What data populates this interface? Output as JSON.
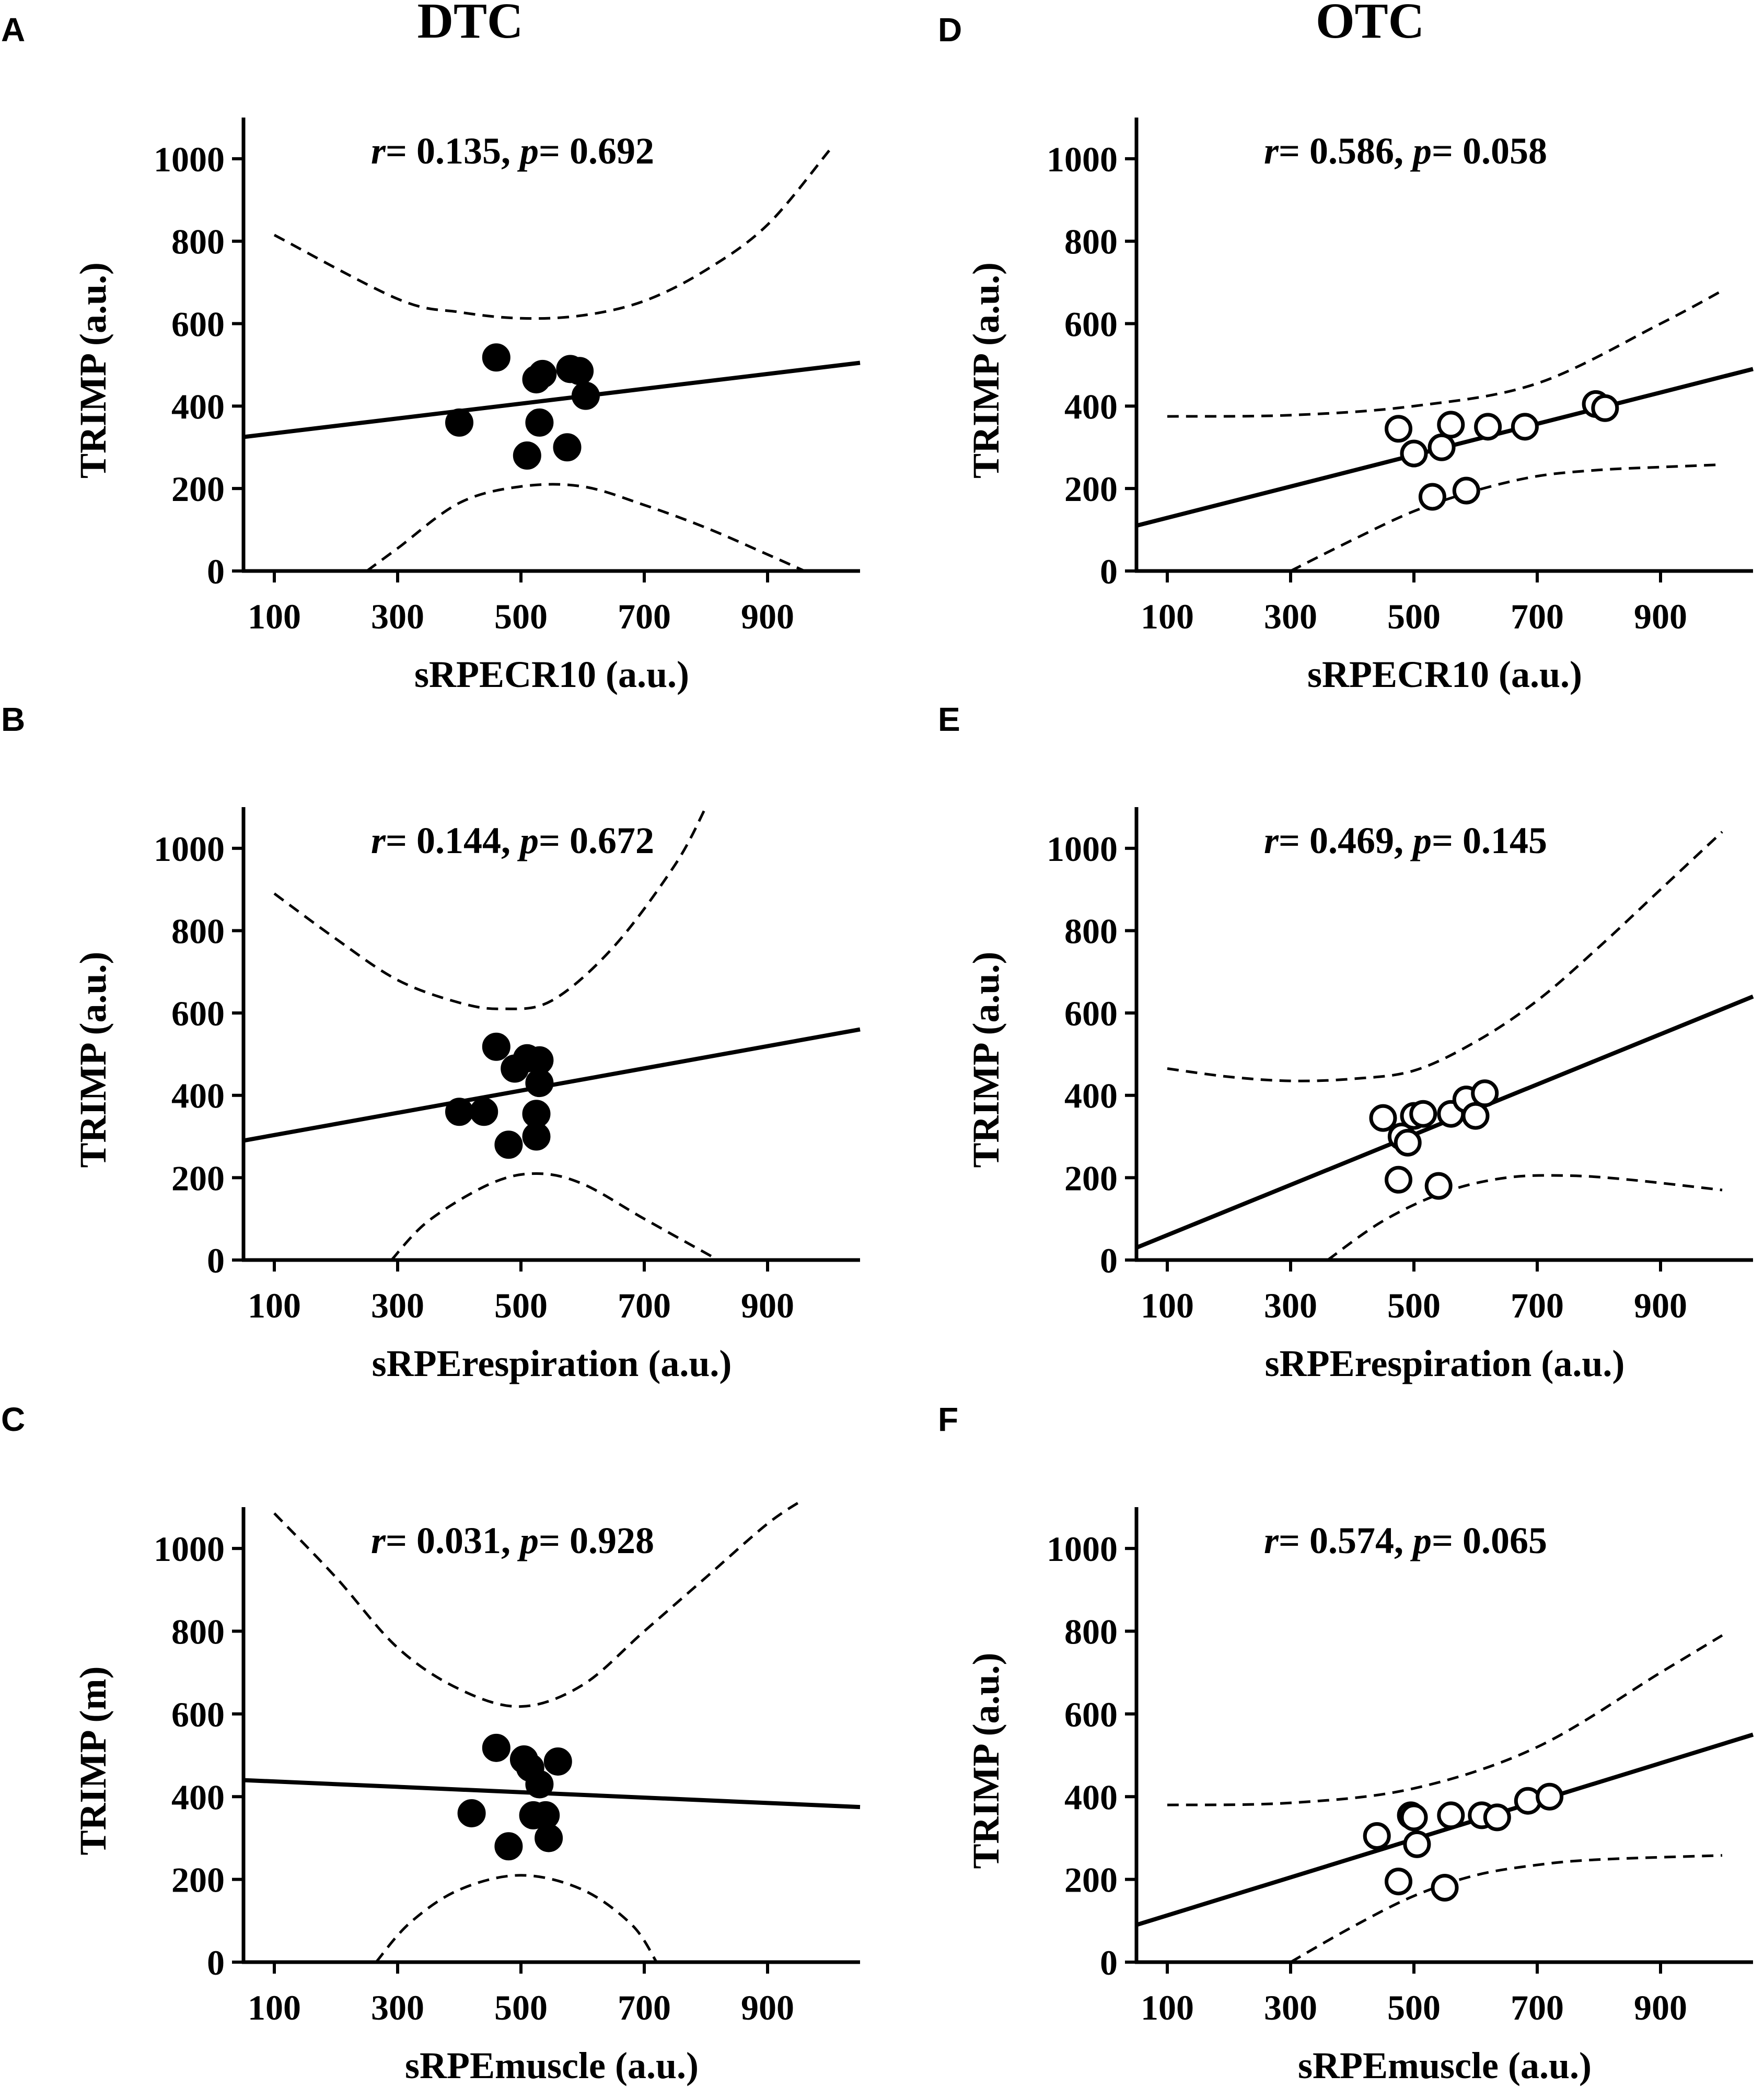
{
  "column_titles": [
    "DTC",
    "OTC"
  ],
  "chart_data": [
    {
      "type": "scatter",
      "panel": "A",
      "group": "DTC",
      "xlabel": "sRPECR10 (a.u.)",
      "ylabel": "TRIMP (a.u.)",
      "r": "0.135",
      "p": "0.692",
      "marker": "filled",
      "xlim": [
        50,
        1050
      ],
      "ylim": [
        0,
        1100
      ],
      "xticks": [
        100,
        300,
        500,
        700,
        900
      ],
      "yticks": [
        0,
        200,
        400,
        600,
        800,
        1000
      ],
      "points": [
        [
          400,
          360
        ],
        [
          460,
          518
        ],
        [
          525,
          465
        ],
        [
          535,
          478
        ],
        [
          530,
          360
        ],
        [
          510,
          280
        ],
        [
          580,
          490
        ],
        [
          595,
          485
        ],
        [
          605,
          425
        ],
        [
          575,
          300
        ]
      ],
      "fit": [
        [
          50,
          325
        ],
        [
          1050,
          505
        ]
      ],
      "ci_upper": [
        [
          100,
          815
        ],
        [
          300,
          660
        ],
        [
          400,
          628
        ],
        [
          500,
          613
        ],
        [
          600,
          620
        ],
        [
          700,
          655
        ],
        [
          800,
          730
        ],
        [
          900,
          840
        ],
        [
          1000,
          1020
        ]
      ],
      "ci_lower": [
        [
          250,
          0
        ],
        [
          300,
          55
        ],
        [
          400,
          165
        ],
        [
          500,
          205
        ],
        [
          600,
          205
        ],
        [
          700,
          160
        ],
        [
          800,
          105
        ],
        [
          900,
          40
        ],
        [
          960,
          0
        ]
      ]
    },
    {
      "type": "scatter",
      "panel": "B",
      "group": "DTC",
      "xlabel": "sRPErespiration (a.u.)",
      "ylabel": "TRIMP (a.u.)",
      "r": "0.144",
      "p": "0.672",
      "marker": "filled",
      "xlim": [
        50,
        1050
      ],
      "ylim": [
        0,
        1100
      ],
      "xticks": [
        100,
        300,
        500,
        700,
        900
      ],
      "yticks": [
        0,
        200,
        400,
        600,
        800,
        1000
      ],
      "points": [
        [
          400,
          360
        ],
        [
          440,
          360
        ],
        [
          460,
          518
        ],
        [
          480,
          280
        ],
        [
          490,
          465
        ],
        [
          510,
          490
        ],
        [
          525,
          355
        ],
        [
          525,
          300
        ],
        [
          530,
          485
        ],
        [
          530,
          430
        ]
      ],
      "fit": [
        [
          50,
          290
        ],
        [
          1050,
          560
        ]
      ],
      "ci_upper": [
        [
          100,
          890
        ],
        [
          200,
          780
        ],
        [
          300,
          680
        ],
        [
          400,
          625
        ],
        [
          470,
          610
        ],
        [
          550,
          630
        ],
        [
          650,
          760
        ],
        [
          750,
          960
        ],
        [
          800,
          1100
        ]
      ],
      "ci_lower": [
        [
          290,
          0
        ],
        [
          350,
          95
        ],
        [
          450,
          185
        ],
        [
          525,
          210
        ],
        [
          600,
          185
        ],
        [
          700,
          100
        ],
        [
          820,
          0
        ]
      ]
    },
    {
      "type": "scatter",
      "panel": "C",
      "group": "DTC",
      "xlabel": "sRPEmuscle (a.u.)",
      "ylabel": "TRIMP (m)",
      "r": "0.031",
      "p": "0.928",
      "marker": "filled",
      "xlim": [
        50,
        1050
      ],
      "ylim": [
        0,
        1100
      ],
      "xticks": [
        100,
        300,
        500,
        700,
        900
      ],
      "yticks": [
        0,
        200,
        400,
        600,
        800,
        1000
      ],
      "points": [
        [
          420,
          360
        ],
        [
          460,
          518
        ],
        [
          480,
          280
        ],
        [
          505,
          490
        ],
        [
          515,
          470
        ],
        [
          520,
          355
        ],
        [
          530,
          430
        ],
        [
          540,
          355
        ],
        [
          545,
          300
        ],
        [
          560,
          485
        ]
      ],
      "fit": [
        [
          50,
          440
        ],
        [
          1050,
          375
        ]
      ],
      "ci_upper": [
        [
          100,
          1085
        ],
        [
          200,
          930
        ],
        [
          300,
          760
        ],
        [
          400,
          660
        ],
        [
          500,
          618
        ],
        [
          600,
          670
        ],
        [
          700,
          800
        ],
        [
          800,
          930
        ],
        [
          900,
          1060
        ],
        [
          960,
          1120
        ]
      ],
      "ci_lower": [
        [
          265,
          0
        ],
        [
          320,
          95
        ],
        [
          400,
          175
        ],
        [
          500,
          210
        ],
        [
          600,
          175
        ],
        [
          680,
          90
        ],
        [
          720,
          0
        ]
      ]
    },
    {
      "type": "scatter",
      "panel": "D",
      "group": "OTC",
      "xlabel": "sRPECR10 (a.u.)",
      "ylabel": "TRIMP (a.u.)",
      "r": "0.586",
      "p": "0.058",
      "marker": "open",
      "xlim": [
        50,
        1050
      ],
      "ylim": [
        0,
        1100
      ],
      "xticks": [
        100,
        300,
        500,
        700,
        900
      ],
      "yticks": [
        0,
        200,
        400,
        600,
        800,
        1000
      ],
      "points": [
        [
          475,
          345
        ],
        [
          500,
          285
        ],
        [
          530,
          180
        ],
        [
          545,
          300
        ],
        [
          560,
          355
        ],
        [
          585,
          195
        ],
        [
          620,
          350
        ],
        [
          680,
          350
        ],
        [
          795,
          405
        ],
        [
          810,
          395
        ]
      ],
      "fit": [
        [
          50,
          110
        ],
        [
          1050,
          490
        ]
      ],
      "ci_upper": [
        [
          100,
          375
        ],
        [
          300,
          378
        ],
        [
          500,
          400
        ],
        [
          700,
          455
        ],
        [
          900,
          600
        ],
        [
          1000,
          680
        ]
      ],
      "ci_lower": [
        [
          300,
          0
        ],
        [
          400,
          75
        ],
        [
          500,
          145
        ],
        [
          600,
          195
        ],
        [
          700,
          230
        ],
        [
          800,
          245
        ],
        [
          900,
          252
        ],
        [
          1000,
          258
        ]
      ]
    },
    {
      "type": "scatter",
      "panel": "E",
      "group": "OTC",
      "xlabel": "sRPErespiration (a.u.)",
      "ylabel": "TRIMP (a.u.)",
      "r": "0.469",
      "p": "0.145",
      "marker": "open",
      "xlim": [
        50,
        1050
      ],
      "ylim": [
        0,
        1100
      ],
      "xticks": [
        100,
        300,
        500,
        700,
        900
      ],
      "yticks": [
        0,
        200,
        400,
        600,
        800,
        1000
      ],
      "points": [
        [
          450,
          345
        ],
        [
          475,
          195
        ],
        [
          480,
          300
        ],
        [
          490,
          285
        ],
        [
          500,
          350
        ],
        [
          515,
          355
        ],
        [
          540,
          180
        ],
        [
          560,
          355
        ],
        [
          585,
          390
        ],
        [
          600,
          350
        ],
        [
          615,
          405
        ]
      ],
      "fit": [
        [
          50,
          30
        ],
        [
          1050,
          640
        ]
      ],
      "ci_upper": [
        [
          100,
          465
        ],
        [
          200,
          445
        ],
        [
          300,
          435
        ],
        [
          400,
          440
        ],
        [
          500,
          460
        ],
        [
          600,
          530
        ],
        [
          700,
          630
        ],
        [
          800,
          760
        ],
        [
          900,
          900
        ],
        [
          1000,
          1040
        ]
      ],
      "ci_lower": [
        [
          360,
          0
        ],
        [
          450,
          95
        ],
        [
          550,
          165
        ],
        [
          650,
          200
        ],
        [
          750,
          205
        ],
        [
          850,
          195
        ],
        [
          1000,
          170
        ]
      ]
    },
    {
      "type": "scatter",
      "panel": "F",
      "group": "OTC",
      "xlabel": "sRPEmuscle (a.u.)",
      "ylabel": "TRIMP (a.u.)",
      "r": "0.574",
      "p": "0.065",
      "marker": "open",
      "xlim": [
        50,
        1050
      ],
      "ylim": [
        0,
        1100
      ],
      "xticks": [
        100,
        300,
        500,
        700,
        900
      ],
      "yticks": [
        0,
        200,
        400,
        600,
        800,
        1000
      ],
      "points": [
        [
          440,
          305
        ],
        [
          475,
          195
        ],
        [
          495,
          355
        ],
        [
          500,
          350
        ],
        [
          505,
          285
        ],
        [
          550,
          180
        ],
        [
          560,
          355
        ],
        [
          610,
          355
        ],
        [
          635,
          350
        ],
        [
          685,
          390
        ],
        [
          720,
          400
        ]
      ],
      "fit": [
        [
          50,
          90
        ],
        [
          1050,
          550
        ]
      ],
      "ci_upper": [
        [
          100,
          380
        ],
        [
          300,
          385
        ],
        [
          500,
          420
        ],
        [
          700,
          520
        ],
        [
          900,
          700
        ],
        [
          1000,
          790
        ]
      ],
      "ci_lower": [
        [
          300,
          0
        ],
        [
          400,
          85
        ],
        [
          500,
          160
        ],
        [
          600,
          210
        ],
        [
          700,
          235
        ],
        [
          800,
          248
        ],
        [
          1000,
          258
        ]
      ]
    }
  ]
}
